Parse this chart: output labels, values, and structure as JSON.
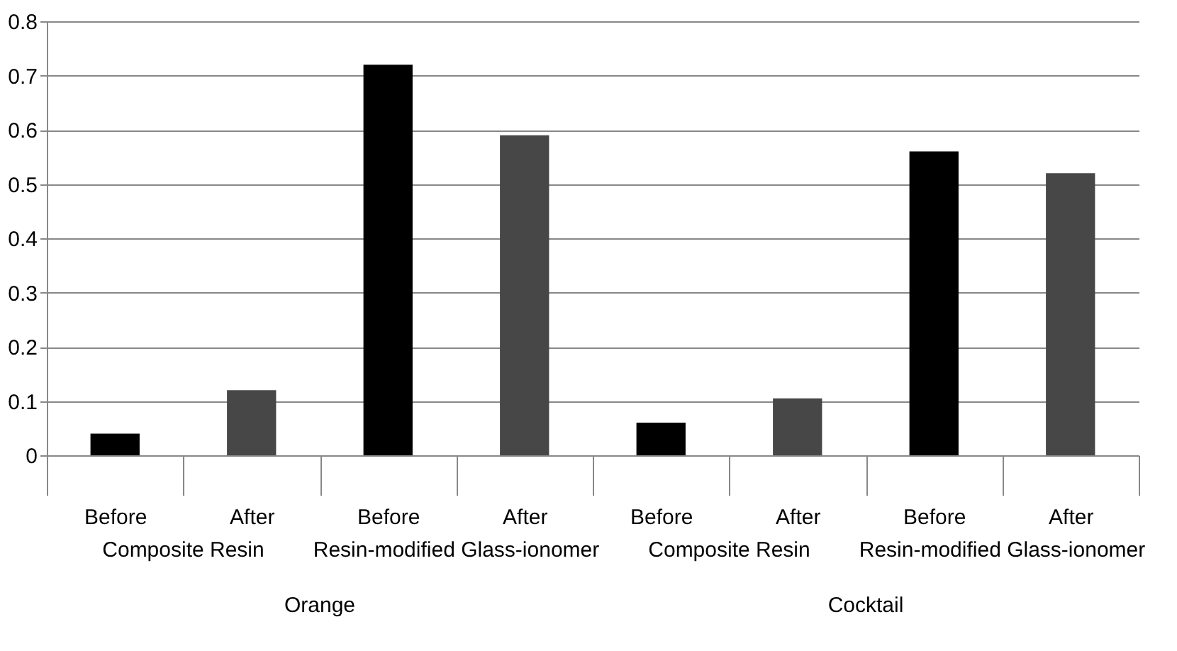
{
  "chart_data": {
    "type": "bar",
    "categories": [
      "Before",
      "After",
      "Before",
      "After",
      "Before",
      "After",
      "Before",
      "After"
    ],
    "values": [
      0.04,
      0.12,
      0.72,
      0.59,
      0.06,
      0.105,
      0.56,
      0.52
    ],
    "colors": [
      "#000000",
      "#474747",
      "#000000",
      "#474747",
      "#000000",
      "#474747",
      "#000000",
      "#474747"
    ],
    "ylim": [
      0,
      0.8
    ],
    "yticks": [
      0,
      0.1,
      0.2,
      0.3,
      0.4,
      0.5,
      0.6,
      0.7,
      0.8
    ],
    "grid": "y",
    "annotations": [
      "Composite Resin",
      "Resin-modified Glass-ionomer",
      "Composite Resin",
      "Resin-modified Glass-ionomer",
      "Orange",
      "Cocktail"
    ]
  }
}
